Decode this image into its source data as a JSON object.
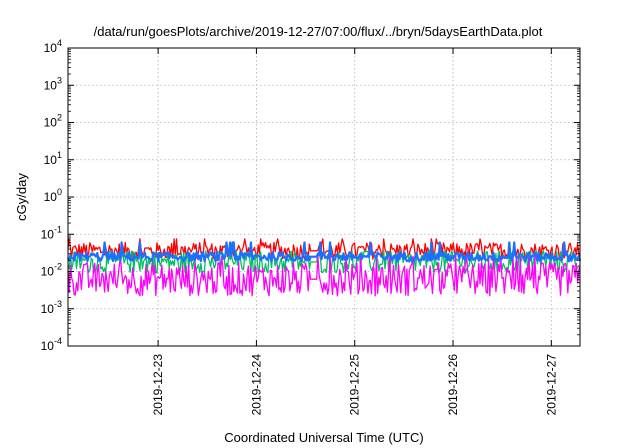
{
  "chart_data": {
    "type": "line",
    "title": "/data/run/goesPlots/archive/2019-12-27/07:00/flux/../bryn/5daysEarthData.plot",
    "xlabel": "Coordinated Universal Time (UTC)",
    "ylabel": "cGy/day",
    "yscale": "log",
    "ylim": [
      0.0001,
      10000
    ],
    "ytick_exponents": [
      "4",
      "3",
      "2",
      "1",
      "0",
      "-1",
      "-2",
      "-3",
      "-4"
    ],
    "xlim": [
      "2019-12-22T02:00",
      "2019-12-27T07:00"
    ],
    "xtick_labels": [
      "2019-12-23",
      "2019-12-24",
      "2019-12-25",
      "2019-12-26",
      "2019-12-27"
    ],
    "grid": true,
    "data_gap": [
      "2019-12-24T13:00",
      "2019-12-24T15:00"
    ],
    "series": [
      {
        "color": "#ff0000",
        "base": 0.036,
        "spread": 0.45,
        "peak": 0.075
      },
      {
        "color": "#00c060",
        "base": 0.018,
        "spread": 0.6,
        "peak": 0.035
      },
      {
        "color": "#1e6fff",
        "base": 0.025,
        "spread": 0.25,
        "peak": 0.06
      },
      {
        "color": "#ff00ff",
        "base": 0.0062,
        "spread": 0.9,
        "peak": 0.025
      }
    ]
  }
}
